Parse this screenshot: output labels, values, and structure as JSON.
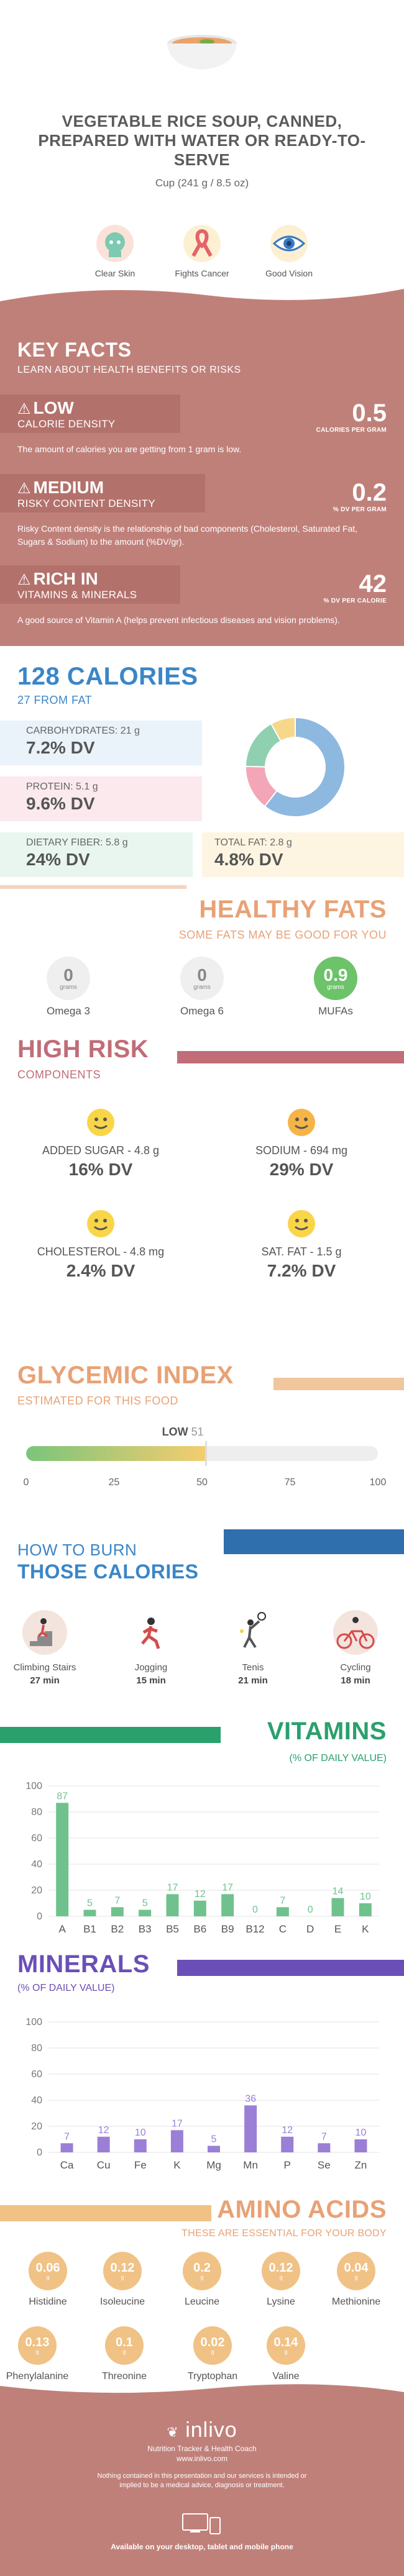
{
  "header": {
    "title": "VEGETABLE RICE SOUP, CANNED, PREPARED WITH WATER OR READY-TO-SERVE",
    "serving": "Cup (241 g / 8.5 oz)",
    "benefits": [
      {
        "label": "Clear Skin",
        "icon": "face-mask-icon",
        "color": "#7ccab0"
      },
      {
        "label": "Fights Cancer",
        "icon": "ribbon-icon",
        "color": "#e4646b"
      },
      {
        "label": "Good Vision",
        "icon": "eye-icon",
        "color": "#3a79c2"
      }
    ]
  },
  "key_facts": {
    "title": "KEY FACTS",
    "subtitle": "LEARN ABOUT HEALTH BENEFITS OR RISKS",
    "items": [
      {
        "level": "LOW",
        "label": "CALORIE DENSITY",
        "value": "0.5",
        "unit": "CALORIES PER GRAM",
        "desc": "The amount of calories you are getting from 1 gram is low."
      },
      {
        "level": "MEDIUM",
        "label": "RISKY CONTENT DENSITY",
        "value": "0.2",
        "unit": "% DV PER GRAM",
        "desc": "Risky Content density is the relationship of bad components (Cholesterol, Saturated Fat, Sugars & Sodium) to the amount (%DV/gr)."
      },
      {
        "level": "RICH IN",
        "label": "VITAMINS & MINERALS",
        "value": "42",
        "unit": "% DV PER CALORIE",
        "desc": "A good source of Vitamin A (helps prevent infectious diseases and vision problems)."
      }
    ]
  },
  "calories": {
    "title": "128 CALORIES",
    "subtitle": "27 FROM FAT",
    "carbs": {
      "label": "CARBOHYDRATES: 21 g",
      "dv": "7.2% DV"
    },
    "protein": {
      "label": "PROTEIN: 5.1 g",
      "dv": "9.6% DV"
    },
    "fiber": {
      "label": "DIETARY FIBER: 5.8 g",
      "dv": "24% DV"
    },
    "fat": {
      "label": "TOTAL FAT: 2.8 g",
      "dv": "4.8% DV"
    },
    "donut": [
      {
        "name": "carbohydrates",
        "value": 21,
        "color": "#8db8e0"
      },
      {
        "name": "protein",
        "value": 5.1,
        "color": "#f2a6b8"
      },
      {
        "name": "dietary fiber",
        "value": 5.8,
        "color": "#8ed0b0"
      },
      {
        "name": "total fat",
        "value": 2.8,
        "color": "#f7d88b"
      }
    ]
  },
  "healthy_fats": {
    "title": "HEALTHY FATS",
    "subtitle": "SOME FATS MAY BE GOOD FOR YOU",
    "unit": "grams",
    "items": [
      {
        "name": "Omega 3",
        "value": "0",
        "highlight": false
      },
      {
        "name": "Omega 6",
        "value": "0",
        "highlight": false
      },
      {
        "name": "MUFAs",
        "value": "0.9",
        "highlight": true
      }
    ]
  },
  "high_risk": {
    "title": "HIGH RISK",
    "subtitle": "COMPONENTS",
    "items": [
      {
        "label": "ADDED SUGAR - 4.8 g",
        "dv": "16% DV"
      },
      {
        "label": "SODIUM - 694 mg",
        "dv": "29% DV"
      },
      {
        "label": "CHOLESTEROL - 4.8 mg",
        "dv": "2.4% DV"
      },
      {
        "label": "SAT. FAT - 1.5 g",
        "dv": "7.2% DV"
      }
    ]
  },
  "glycemic": {
    "title": "GLYCEMIC INDEX",
    "subtitle": "ESTIMATED FOR THIS FOOD",
    "level": "LOW",
    "value": 51,
    "ticks": [
      "0",
      "25",
      "50",
      "75",
      "100"
    ]
  },
  "burn": {
    "subtitle": "HOW TO BURN",
    "title": "THOSE CALORIES",
    "activities": [
      {
        "name": "Climbing Stairs",
        "time": "27 min",
        "icon": "stairs-icon"
      },
      {
        "name": "Jogging",
        "time": "15 min",
        "icon": "jogging-icon"
      },
      {
        "name": "Tenis",
        "time": "21 min",
        "icon": "tennis-icon"
      },
      {
        "name": "Cycling",
        "time": "18 min",
        "icon": "cycling-icon"
      }
    ]
  },
  "vitamins": {
    "title": "VITAMINS",
    "subtitle": "(% OF DAILY VALUE)",
    "color": "#6fc28d",
    "yticks": [
      "0",
      "20",
      "40",
      "60",
      "80",
      "100"
    ],
    "categories": [
      "A",
      "B1",
      "B2",
      "B3",
      "B5",
      "B6",
      "B9",
      "B12",
      "C",
      "D",
      "E",
      "K"
    ],
    "values": [
      87,
      5,
      7,
      5,
      17,
      12,
      17,
      0,
      7,
      0,
      14,
      10
    ],
    "labels": [
      "87",
      "5",
      "7",
      "5",
      "17",
      "12",
      "17",
      "0",
      "7",
      "0",
      "14",
      "10"
    ]
  },
  "minerals": {
    "title": "MINERALS",
    "subtitle": "(% OF DAILY VALUE)",
    "color": "#9b7fd6",
    "yticks": [
      "0",
      "20",
      "40",
      "60",
      "80",
      "100"
    ],
    "categories": [
      "Ca",
      "Cu",
      "Fe",
      "K",
      "Mg",
      "Mn",
      "P",
      "Se",
      "Zn"
    ],
    "values": [
      7,
      12,
      10,
      17,
      5,
      36,
      12,
      7,
      10
    ],
    "labels": [
      "7",
      "12",
      "10",
      "17",
      "5",
      "36",
      "12",
      "7",
      "10"
    ]
  },
  "amino": {
    "title": "AMINO ACIDS",
    "subtitle": "THESE ARE ESSENTIAL FOR YOUR BODY",
    "unit": "g",
    "row1": [
      {
        "name": "Histidine",
        "value": "0.06"
      },
      {
        "name": "Isoleucine",
        "value": "0.12"
      },
      {
        "name": "Leucine",
        "value": "0.2"
      },
      {
        "name": "Lysine",
        "value": "0.12"
      },
      {
        "name": "Methionine",
        "value": "0.04"
      }
    ],
    "row2": [
      {
        "name": "Phenylalanine",
        "value": "0.13"
      },
      {
        "name": "Threonine",
        "value": "0.1"
      },
      {
        "name": "Tryptophan",
        "value": "0.02"
      },
      {
        "name": "Valine",
        "value": "0.14"
      }
    ]
  },
  "footer": {
    "logo": "inlivo",
    "tagline": "Nutrition Tracker & Health Coach",
    "url": "www.inlivo.com",
    "disclaimer": "Nothing contained in this presentation and our services is intended or implied to be a medical advice, diagnosis or treatment.",
    "available": "Available on your desktop, tablet and mobile phone"
  }
}
